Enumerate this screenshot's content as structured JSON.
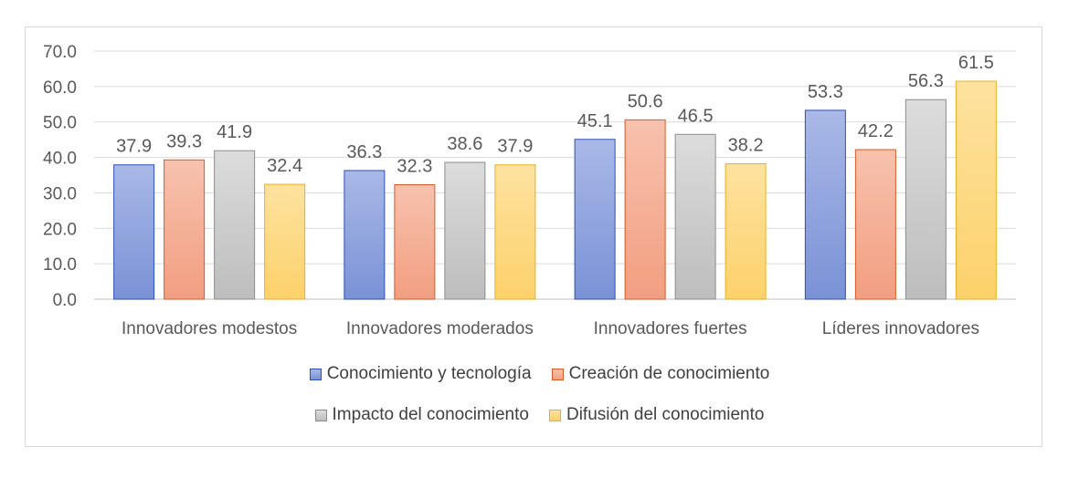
{
  "chart_data": {
    "type": "bar",
    "categories": [
      "Innovadores modestos",
      "Innovadores moderados",
      "Innovadores fuertes",
      "Líderes innovadores"
    ],
    "series": [
      {
        "name": "Conocimiento y tecnología",
        "values": [
          37.9,
          36.3,
          45.1,
          53.3
        ],
        "fill_top": "#a9b8e6",
        "fill_bottom": "#7a92d6",
        "stroke": "#2f4fb8"
      },
      {
        "name": "Creación de conocimiento",
        "values": [
          39.3,
          32.3,
          50.6,
          42.2
        ],
        "fill_top": "#f7c2ae",
        "fill_bottom": "#f29e80",
        "stroke": "#d85a26"
      },
      {
        "name": "Impacto del conocimiento",
        "values": [
          41.9,
          38.6,
          46.5,
          56.3
        ],
        "fill_top": "#dcdcdc",
        "fill_bottom": "#bdbdbd",
        "stroke": "#8c8c8c"
      },
      {
        "name": "Difusión del conocimiento",
        "values": [
          32.4,
          37.9,
          38.2,
          61.5
        ],
        "fill_top": "#fde2a0",
        "fill_bottom": "#fcd16a",
        "stroke": "#e9b020"
      }
    ],
    "y_ticks": [
      "0.0",
      "10.0",
      "20.0",
      "30.0",
      "40.0",
      "50.0",
      "60.0",
      "70.0"
    ],
    "ylim": [
      0,
      70
    ],
    "grid": true,
    "legend_position": "bottom",
    "title": "",
    "xlabel": "",
    "ylabel": ""
  }
}
